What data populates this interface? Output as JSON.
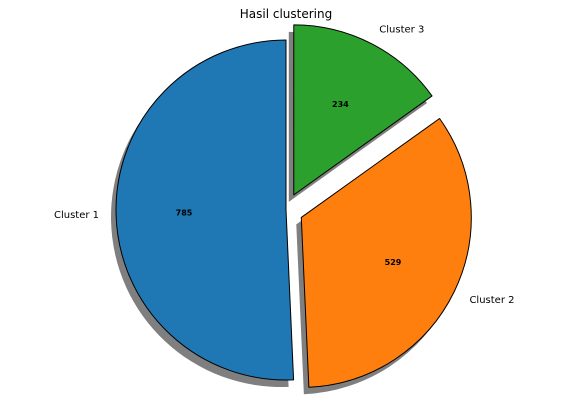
{
  "chart_data": {
    "type": "pie",
    "title": "Hasil clustering",
    "categories": [
      "Cluster 1",
      "Cluster 2",
      "Cluster 3"
    ],
    "values": [
      785,
      529,
      234
    ],
    "colors": [
      "#1f77b4",
      "#ff7f0e",
      "#2ca02c"
    ],
    "explode": [
      0.0,
      0.1,
      0.1
    ],
    "start_angle_deg": 90,
    "counterclockwise": true,
    "shadow": true,
    "edge_color": "#000000",
    "value_labels": [
      "785",
      "529",
      "234"
    ],
    "legend": "none"
  }
}
